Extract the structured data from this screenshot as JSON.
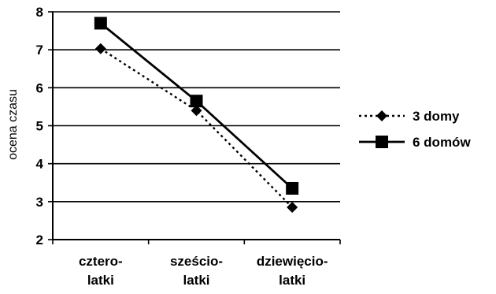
{
  "chart_data": {
    "type": "line",
    "title": "",
    "xlabel": "",
    "ylabel": "ocena czasu",
    "ylim": [
      2,
      8
    ],
    "yticks": [
      2,
      3,
      4,
      5,
      6,
      7,
      8
    ],
    "grid": true,
    "legend_position": "right",
    "categories": [
      [
        "cztero-",
        "latki"
      ],
      [
        "sześcio-",
        "latki"
      ],
      [
        "dziewięcio-",
        "latki"
      ]
    ],
    "series": [
      {
        "name": "3 domy",
        "values": [
          7.03,
          5.4,
          2.85
        ],
        "color": "#000000",
        "line_style": "dotted",
        "marker": "diamond"
      },
      {
        "name": "6 domów",
        "values": [
          7.7,
          5.65,
          3.35
        ],
        "color": "#000000",
        "line_style": "solid",
        "marker": "square"
      }
    ]
  }
}
